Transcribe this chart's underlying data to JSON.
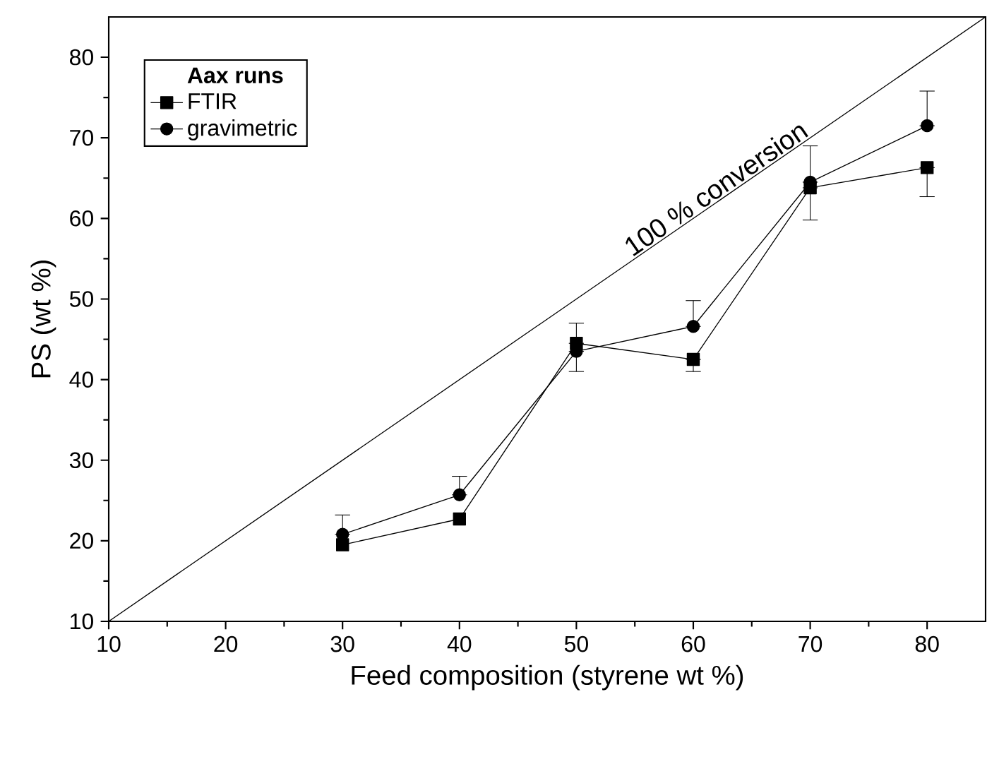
{
  "chart_data": {
    "type": "line",
    "xlabel": "Feed composition (styrene wt %)",
    "ylabel": "PS (wt %)",
    "legend_title": "Aax runs",
    "xlim": [
      10,
      85
    ],
    "ylim": [
      10,
      85
    ],
    "xticks": [
      10,
      20,
      30,
      40,
      50,
      60,
      70,
      80
    ],
    "yticks": [
      10,
      20,
      30,
      40,
      50,
      60,
      70,
      80
    ],
    "legend": "top left",
    "grid": false,
    "series": [
      {
        "name": "FTIR",
        "color": "#000000",
        "marker": "square",
        "x": [
          30,
          40,
          50,
          60,
          70,
          80
        ],
        "values": [
          19.5,
          22.7,
          44.5,
          42.5,
          63.8,
          66.3
        ],
        "errors": [
          null,
          null,
          [
            44.5,
            47
          ],
          [
            41,
            42.5
          ],
          [
            59.8,
            63.8
          ],
          [
            62.7,
            66.3
          ]
        ]
      },
      {
        "name": "gravimetric",
        "color": "#000000",
        "marker": "circle",
        "x": [
          30,
          40,
          50,
          60,
          70,
          80
        ],
        "values": [
          20.8,
          25.7,
          43.5,
          46.6,
          64.5,
          71.5
        ],
        "errors": [
          [
            20.8,
            23.2
          ],
          [
            25.7,
            28
          ],
          [
            41,
            43.5
          ],
          [
            46.6,
            49.8
          ],
          [
            64.5,
            69
          ],
          [
            71.5,
            75.8
          ]
        ]
      },
      {
        "name": "100 % conversion",
        "color": "#000000",
        "marker": "none",
        "x": [
          10,
          85
        ],
        "values": [
          10,
          85
        ]
      }
    ]
  }
}
